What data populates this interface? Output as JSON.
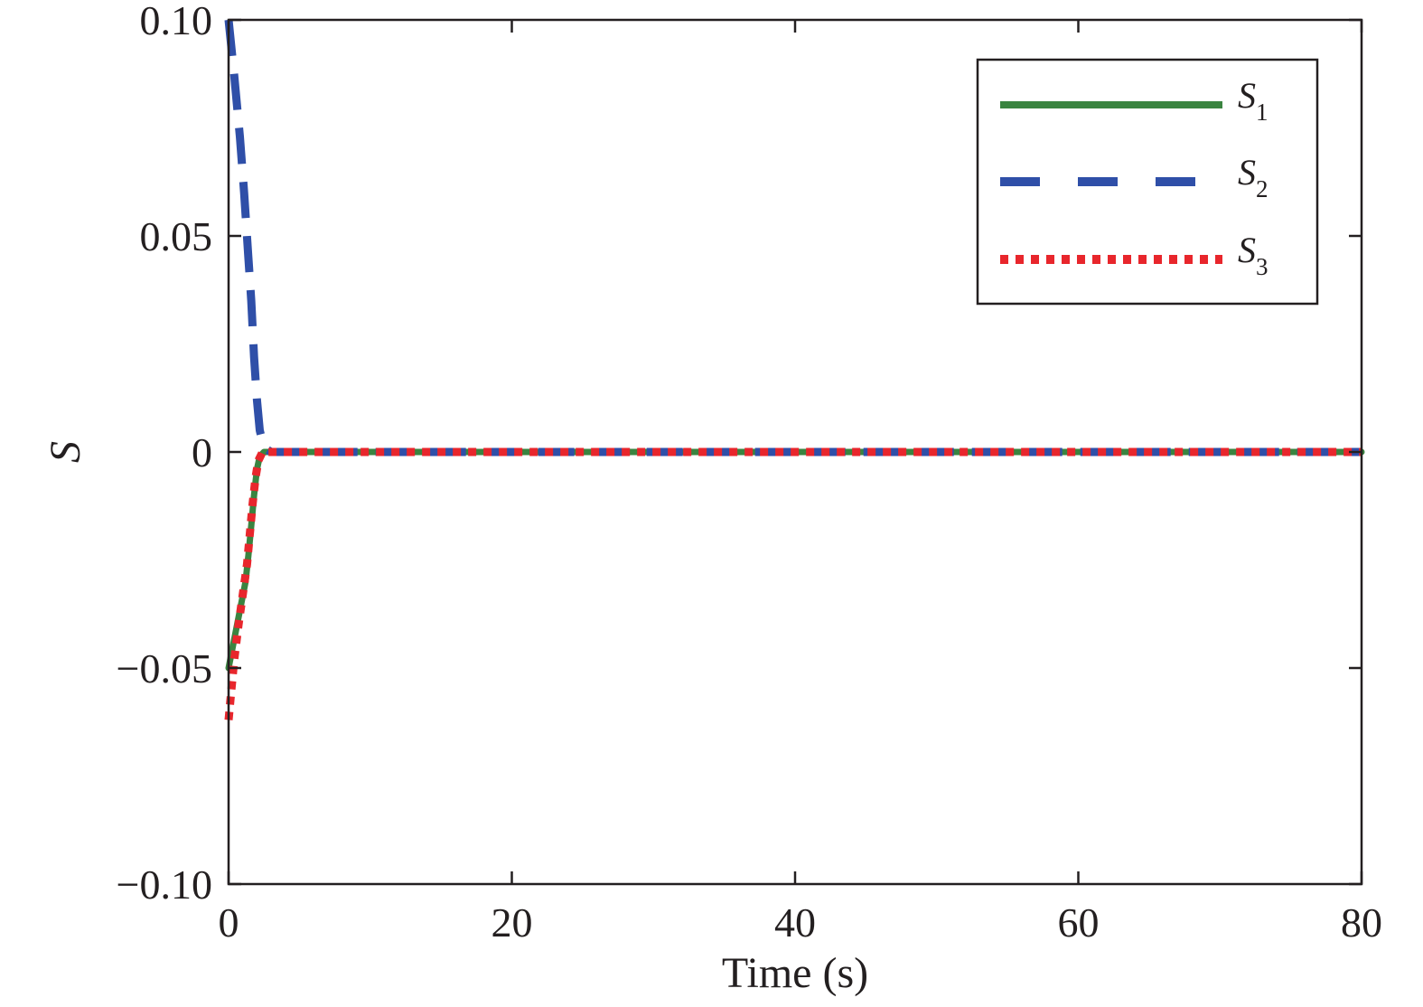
{
  "chart_data": {
    "type": "line",
    "title": "",
    "xlabel": "Time (s)",
    "ylabel": "S",
    "xlim": [
      0,
      80
    ],
    "ylim": [
      -0.1,
      0.1
    ],
    "xticks": [
      0,
      20,
      40,
      60,
      80
    ],
    "xtick_labels": [
      "0",
      "20",
      "40",
      "60",
      "80"
    ],
    "yticks": [
      0.1,
      0.05,
      0,
      -0.05,
      -0.1
    ],
    "ytick_labels": [
      "0.10",
      "0.05",
      "0",
      "−0.05",
      "−0.10"
    ],
    "grid": false,
    "legend_position": "top-right",
    "series": [
      {
        "name": "S1",
        "label_base": "S",
        "label_sub": "1",
        "color": "#3a8440",
        "style": "solid",
        "x": [
          0,
          0.3,
          0.6,
          0.9,
          1.2,
          1.4,
          1.6,
          1.8,
          2.0,
          2.2,
          2.5,
          3,
          5,
          10,
          20,
          40,
          60,
          80
        ],
        "y": [
          -0.05,
          -0.045,
          -0.04,
          -0.035,
          -0.03,
          -0.024,
          -0.017,
          -0.01,
          -0.004,
          -0.001,
          0,
          0,
          0,
          0,
          0,
          0,
          0,
          0
        ]
      },
      {
        "name": "S2",
        "label_base": "S",
        "label_sub": "2",
        "color": "#2f4fa8",
        "style": "dashed",
        "x": [
          0,
          0.4,
          0.8,
          1.1,
          1.4,
          1.6,
          1.8,
          2.0,
          2.2,
          2.5,
          3,
          5,
          10,
          20,
          40,
          60,
          80
        ],
        "y": [
          0.1,
          0.087,
          0.073,
          0.06,
          0.045,
          0.035,
          0.022,
          0.012,
          0.005,
          0.001,
          0,
          0,
          0,
          0,
          0,
          0,
          0
        ]
      },
      {
        "name": "S3",
        "label_base": "S",
        "label_sub": "3",
        "color": "#e8262c",
        "style": "dotted",
        "x": [
          0,
          0.2,
          0.4,
          0.7,
          1.0,
          1.3,
          1.5,
          1.7,
          1.9,
          2.1,
          2.4,
          3,
          5,
          10,
          20,
          40,
          60,
          80
        ],
        "y": [
          -0.062,
          -0.055,
          -0.048,
          -0.04,
          -0.033,
          -0.026,
          -0.019,
          -0.012,
          -0.006,
          -0.002,
          0,
          0,
          0,
          0,
          0,
          0,
          0,
          0
        ]
      }
    ]
  }
}
